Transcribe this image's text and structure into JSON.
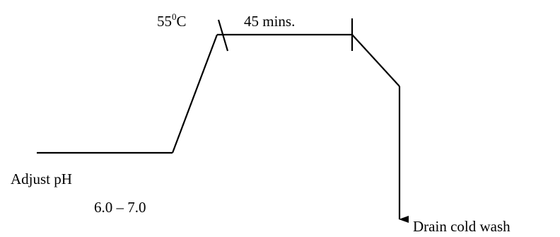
{
  "labels": {
    "temperature_value": "55",
    "temperature_sup": "0",
    "temperature_unit": "C",
    "hold_time": "45 mins.",
    "adjust": "Adjust pH",
    "ph_range": "6.0 – 7.0",
    "drain": "Drain cold wash"
  },
  "colors": {
    "line": "#000000",
    "background": "#ffffff"
  }
}
